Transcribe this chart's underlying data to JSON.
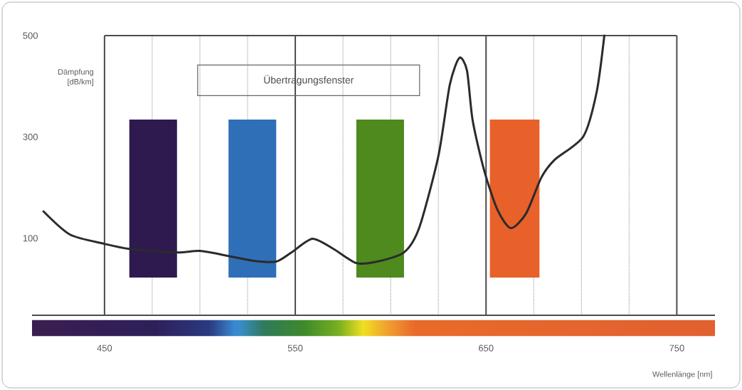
{
  "chart_data": {
    "type": "line",
    "xlabel": "Wellenlänge [nm]",
    "ylabel": "Dämpfung [dB/km]",
    "annotations": [
      "Übertragungsfenster"
    ],
    "x": [
      418,
      432,
      450,
      463,
      488,
      500,
      515,
      529,
      540,
      548,
      559,
      570,
      582,
      593,
      607,
      615,
      625,
      631,
      636,
      640,
      643,
      649,
      656,
      663,
      671,
      679,
      686,
      701,
      708,
      712
    ],
    "series": [
      {
        "color": "#2b2b2b",
        "values": [
          153,
          107,
          89,
          79,
          72,
          75,
          65,
          55,
          54,
          72,
          99,
          79,
          51,
          54,
          72,
          121,
          262,
          403,
          456,
          431,
          332,
          234,
          156,
          120,
          149,
          220,
          255,
          301,
          389,
          500
        ]
      }
    ],
    "xlim": [
      412,
      770
    ],
    "ylim": [
      -52,
      500
    ],
    "xticks": [
      450,
      {
        "value": 475,
        "label": null
      },
      {
        "value": 500,
        "label": null
      },
      {
        "value": 525,
        "label": null
      },
      550,
      {
        "value": 575,
        "label": null
      },
      {
        "value": 600,
        "label": null
      },
      {
        "value": 625,
        "label": null
      },
      650,
      {
        "value": 675,
        "label": null
      },
      {
        "value": 700,
        "label": null
      },
      {
        "value": 725,
        "label": null
      },
      750
    ],
    "yticks": [
      100,
      300,
      500
    ],
    "bands": [
      {
        "axis": "x",
        "from": 463,
        "to": 488,
        "color": "#2e1a4f"
      },
      {
        "axis": "x",
        "from": 515,
        "to": 540,
        "color": "#2f6fb7"
      },
      {
        "axis": "x",
        "from": 582,
        "to": 607,
        "color": "#4e8a1e"
      },
      {
        "axis": "x",
        "from": 652,
        "to": 678,
        "color": "#e8612a"
      }
    ],
    "grid": "x",
    "marker": "none",
    "line_style": "solid"
  }
}
